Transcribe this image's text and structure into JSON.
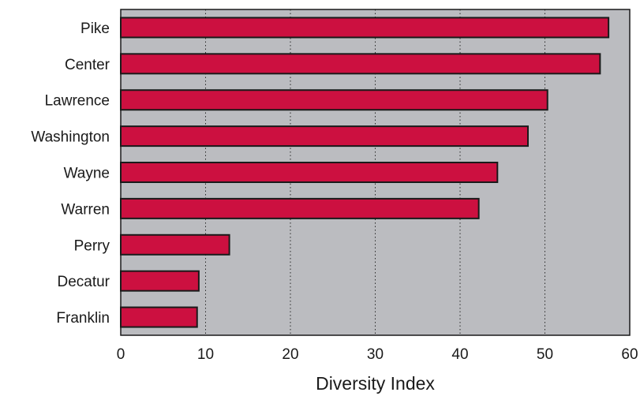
{
  "chart_data": {
    "type": "bar",
    "orientation": "horizontal",
    "categories": [
      "Pike",
      "Center",
      "Lawrence",
      "Washington",
      "Wayne",
      "Warren",
      "Perry",
      "Decatur",
      "Franklin"
    ],
    "values": [
      57.5,
      56.5,
      50.3,
      48.0,
      44.4,
      42.2,
      12.8,
      9.2,
      9.0
    ],
    "xlabel": "Diversity Index",
    "ylabel": "",
    "xlim": [
      0,
      60
    ],
    "xticks": [
      "0",
      "10",
      "20",
      "30",
      "40",
      "50",
      "60"
    ],
    "grid": "vertical dotted",
    "colors": {
      "bar_fill": "#cc1040",
      "bar_stroke": "#1a1a1a",
      "plot_background": "#bbbcc0",
      "grid": "#2a2a2a"
    }
  }
}
